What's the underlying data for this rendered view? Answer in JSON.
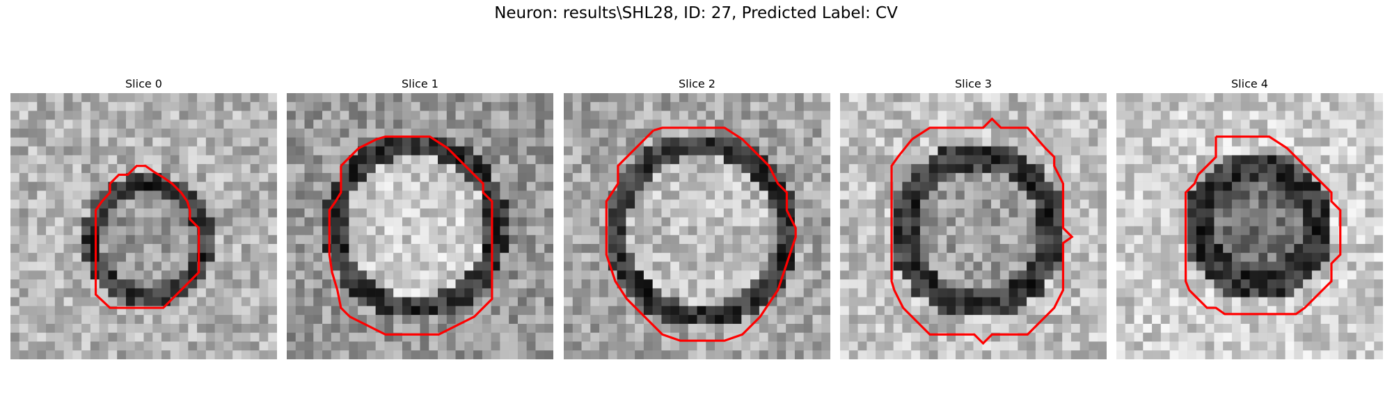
{
  "figure": {
    "title": "Neuron: results\\SHL28, ID: 27, Predicted Label: CV",
    "contour_color": "#ff0000"
  },
  "panels": [
    {
      "label": "Slice 0"
    },
    {
      "label": "Slice 1"
    },
    {
      "label": "Slice 2"
    },
    {
      "label": "Slice 3"
    },
    {
      "label": "Slice 4"
    }
  ]
}
